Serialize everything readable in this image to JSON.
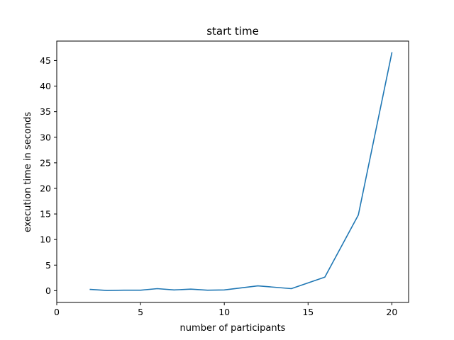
{
  "chart_data": {
    "type": "line",
    "title": "start time",
    "xlabel": "number of participants",
    "ylabel": "execution time in seconds",
    "xlim": [
      0,
      21
    ],
    "ylim": [
      -2.3,
      48.8
    ],
    "xticks": [
      0,
      5,
      10,
      15,
      20
    ],
    "yticks": [
      0,
      5,
      10,
      15,
      20,
      25,
      30,
      35,
      40,
      45
    ],
    "grid": false,
    "series": [
      {
        "color": "#1f77b4",
        "x": [
          2,
          3,
          4,
          5,
          6,
          7,
          8,
          9,
          10,
          12,
          14,
          16,
          18,
          20
        ],
        "y": [
          0.25,
          0.05,
          0.1,
          0.1,
          0.4,
          0.15,
          0.3,
          0.1,
          0.15,
          0.95,
          0.4,
          2.65,
          14.8,
          46.5
        ]
      }
    ]
  }
}
